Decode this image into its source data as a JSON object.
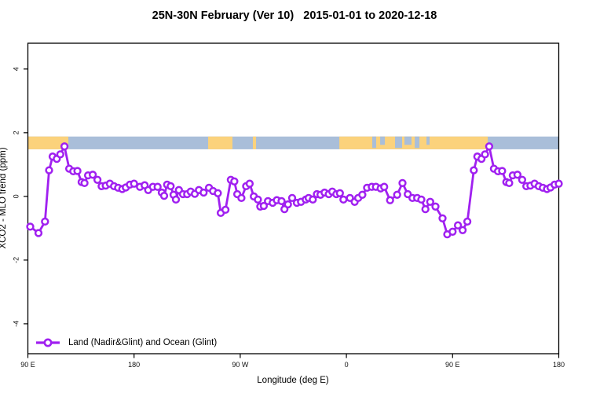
{
  "title": "25N-30N February (Ver 10)   2015-01-01 to 2020-12-18",
  "chart_data": {
    "type": "line",
    "title": "25N-30N February (Ver 10)   2015-01-01 to 2020-12-18",
    "xlabel": "Longitude (deg E)",
    "ylabel": "XCO2 - MLO trend (ppm)",
    "xlim": [
      90,
      540
    ],
    "ylim": [
      -4.94,
      4.81
    ],
    "grid": false,
    "x_ticks": [
      {
        "pos": 90,
        "label": "90 E"
      },
      {
        "pos": 180,
        "label": "180"
      },
      {
        "pos": 270,
        "label": "90 W"
      },
      {
        "pos": 360,
        "label": "0"
      },
      {
        "pos": 450,
        "label": "90 E"
      },
      {
        "pos": 540,
        "label": "180"
      }
    ],
    "y_ticks": [
      {
        "pos": -4,
        "label": "-4"
      },
      {
        "pos": -2,
        "label": "-2"
      },
      {
        "pos": 0,
        "label": "0"
      },
      {
        "pos": 2,
        "label": "2"
      },
      {
        "pos": 4,
        "label": "4"
      }
    ],
    "legend": {
      "position": "bottom-left",
      "label": "Land (Nadir&Glint) and Ocean (Glint)"
    },
    "line_color": "#A020F0",
    "marker": "open-circle",
    "surface_band": {
      "note": "land/ocean strip drawn across plot near y=1.7 ppm",
      "y_range": [
        1.48,
        1.88
      ],
      "ocean_color": "#A9BED9",
      "land_color": "#FBD27C",
      "land_segments": [
        [
          90,
          124.3
        ],
        [
          242.8,
          263.4
        ],
        [
          280.7,
          283.4
        ],
        [
          354,
          479.8
        ]
      ],
      "ocean_inlets": [
        [
          381.9,
          385.2
        ],
        [
          388.6,
          392.6
        ],
        [
          401.2,
          407.2
        ],
        [
          409.2,
          415.2
        ],
        [
          417.9,
          421.9
        ],
        [
          427.9,
          430.5
        ]
      ]
    },
    "series": [
      {
        "name": "Land (Nadir&Glint) and Ocean (Glint)",
        "color": "#A020F0",
        "points": [
          [
            92,
            -0.95
          ],
          [
            99,
            -1.15
          ],
          [
            104.5,
            -0.79
          ],
          [
            108,
            0.82
          ],
          [
            111,
            1.25
          ],
          [
            114.5,
            1.18
          ],
          [
            117.5,
            1.32
          ],
          [
            121,
            1.57
          ],
          [
            125,
            0.87
          ],
          [
            128.5,
            0.79
          ],
          [
            132,
            0.8
          ],
          [
            135.5,
            0.45
          ],
          [
            138,
            0.42
          ],
          [
            141,
            0.66
          ],
          [
            145,
            0.68
          ],
          [
            149,
            0.52
          ],
          [
            152.5,
            0.32
          ],
          [
            156,
            0.34
          ],
          [
            159.5,
            0.4
          ],
          [
            163,
            0.32
          ],
          [
            166.5,
            0.27
          ],
          [
            170,
            0.23
          ],
          [
            173,
            0.28
          ],
          [
            176.5,
            0.37
          ],
          [
            180,
            0.4
          ],
          [
            185,
            0.3
          ],
          [
            189,
            0.35
          ],
          [
            192,
            0.2
          ],
          [
            196,
            0.3
          ],
          [
            200,
            0.3
          ],
          [
            203.5,
            0.12
          ],
          [
            205.5,
            0.02
          ],
          [
            208,
            0.37
          ],
          [
            211,
            0.32
          ],
          [
            213.5,
            0.05
          ],
          [
            215.5,
            -0.1
          ],
          [
            218,
            0.2
          ],
          [
            221.5,
            0.07
          ],
          [
            225,
            0.07
          ],
          [
            228,
            0.15
          ],
          [
            231.5,
            0.08
          ],
          [
            235,
            0.2
          ],
          [
            239,
            0.12
          ],
          [
            243.5,
            0.27
          ],
          [
            247,
            0.17
          ],
          [
            251,
            0.1
          ],
          [
            253.5,
            -0.52
          ],
          [
            257.5,
            -0.42
          ],
          [
            262,
            0.52
          ],
          [
            265,
            0.47
          ],
          [
            267.5,
            0.07
          ],
          [
            271,
            -0.05
          ],
          [
            275,
            0.32
          ],
          [
            278,
            0.4
          ],
          [
            281.5,
            0
          ],
          [
            285,
            -0.1
          ],
          [
            287,
            -0.32
          ],
          [
            290,
            -0.3
          ],
          [
            293.5,
            -0.15
          ],
          [
            297.5,
            -0.2
          ],
          [
            301,
            -0.12
          ],
          [
            305,
            -0.15
          ],
          [
            307.5,
            -0.4
          ],
          [
            310.5,
            -0.25
          ],
          [
            314,
            -0.05
          ],
          [
            318,
            -0.2
          ],
          [
            321.5,
            -0.17
          ],
          [
            325.5,
            -0.1
          ],
          [
            328,
            -0.05
          ],
          [
            331.5,
            -0.1
          ],
          [
            335,
            0.07
          ],
          [
            338,
            0.05
          ],
          [
            341.5,
            0.12
          ],
          [
            345,
            0.07
          ],
          [
            348,
            0.15
          ],
          [
            351.5,
            0.07
          ],
          [
            354.5,
            0.1
          ],
          [
            357.5,
            -0.1
          ],
          [
            363,
            -0.05
          ],
          [
            367,
            -0.17
          ],
          [
            370,
            -0.05
          ],
          [
            373.5,
            0.05
          ],
          [
            377.5,
            0.27
          ],
          [
            381.5,
            0.3
          ],
          [
            385,
            0.3
          ],
          [
            389,
            0.25
          ],
          [
            392,
            0.3
          ],
          [
            397,
            -0.12
          ],
          [
            403,
            0.05
          ],
          [
            407.5,
            0.42
          ],
          [
            412,
            0.07
          ],
          [
            416,
            -0.05
          ],
          [
            420,
            -0.05
          ],
          [
            423.5,
            -0.1
          ],
          [
            427,
            -0.4
          ],
          [
            431,
            -0.17
          ],
          [
            435.5,
            -0.32
          ],
          [
            441.5,
            -0.69
          ],
          [
            445.5,
            -1.19
          ],
          [
            450,
            -1.11
          ],
          [
            454.5,
            -0.91
          ],
          [
            458.5,
            -1.06
          ],
          [
            462.5,
            -0.79
          ],
          [
            468,
            0.82
          ],
          [
            471,
            1.25
          ],
          [
            474.5,
            1.18
          ],
          [
            477.5,
            1.32
          ],
          [
            481,
            1.57
          ],
          [
            485,
            0.87
          ],
          [
            488.5,
            0.79
          ],
          [
            492,
            0.8
          ],
          [
            495.5,
            0.45
          ],
          [
            498,
            0.42
          ],
          [
            501,
            0.66
          ],
          [
            505,
            0.68
          ],
          [
            509,
            0.52
          ],
          [
            512.5,
            0.32
          ],
          [
            516,
            0.34
          ],
          [
            519.5,
            0.4
          ],
          [
            523,
            0.32
          ],
          [
            526.5,
            0.27
          ],
          [
            530,
            0.23
          ],
          [
            533,
            0.28
          ],
          [
            536.5,
            0.37
          ],
          [
            540,
            0.4
          ]
        ]
      }
    ]
  }
}
